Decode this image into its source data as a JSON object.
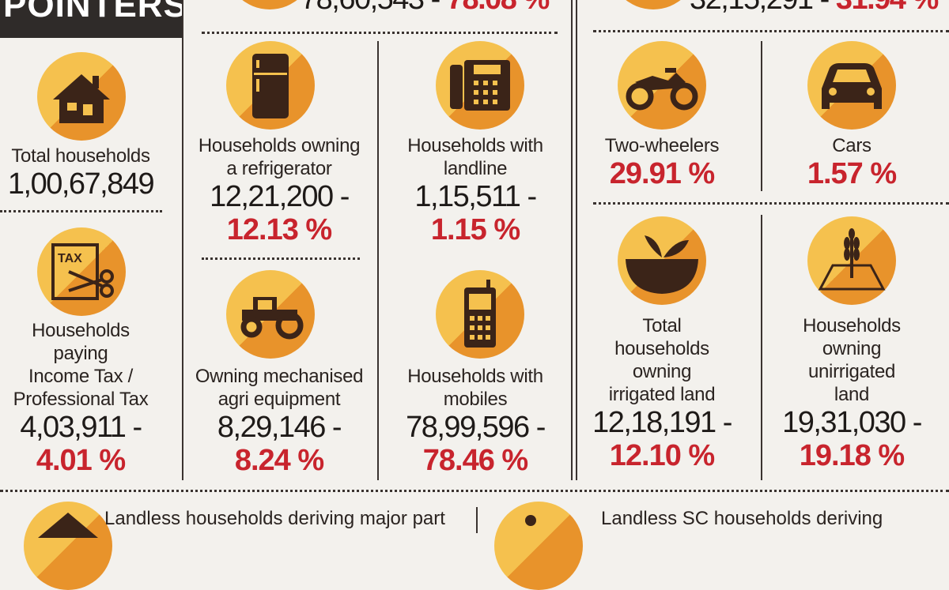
{
  "header": {
    "banner": "POINTERS",
    "top_left_value": "78,60,543 -",
    "top_left_pct": "78.08 %",
    "top_right_value": "32,15,291 -",
    "top_right_pct": "31.94 %"
  },
  "stats": [
    {
      "id": "total-households",
      "icon": "house-icon",
      "label_lines": [
        "Total households"
      ],
      "value": "1,00,67,849",
      "pct": ""
    },
    {
      "id": "refrigerator",
      "icon": "refrigerator-icon",
      "label_lines": [
        "Households owning",
        "a refrigerator"
      ],
      "value": "12,21,200 -",
      "pct": "12.13 %"
    },
    {
      "id": "landline",
      "icon": "landline-phone-icon",
      "label_lines": [
        "Households with",
        "landline"
      ],
      "value": "1,15,511 -",
      "pct": "1.15 %"
    },
    {
      "id": "two-wheelers",
      "icon": "motorcycle-icon",
      "label_lines": [
        "Two-wheelers"
      ],
      "value": "",
      "pct": "29.91 %"
    },
    {
      "id": "cars",
      "icon": "car-icon",
      "label_lines": [
        "Cars"
      ],
      "value": "",
      "pct": "1.57 %"
    },
    {
      "id": "income-tax",
      "icon": "tax-scissors-icon",
      "label_lines": [
        "Households",
        "paying",
        "Income Tax /",
        "Professional Tax"
      ],
      "value": "4,03,911 -",
      "pct": "4.01 %"
    },
    {
      "id": "agri-equipment",
      "icon": "tractor-icon",
      "label_lines": [
        "Owning mechanised",
        "agri equipment"
      ],
      "value": "8,29,146 -",
      "pct": "8.24 %"
    },
    {
      "id": "mobiles",
      "icon": "mobile-phone-icon",
      "label_lines": [
        "Households with",
        "mobiles"
      ],
      "value": "78,99,596 -",
      "pct": "78.46 %"
    },
    {
      "id": "irrigated-land",
      "icon": "plant-soil-icon",
      "label_lines": [
        "Total",
        "households",
        "owning",
        "irrigated land"
      ],
      "value": "12,18,191 -",
      "pct": "12.10 %"
    },
    {
      "id": "unirrigated-land",
      "icon": "wheat-field-icon",
      "label_lines": [
        "Households",
        "owning",
        "unirrigated",
        "land"
      ],
      "value": "19,31,030 -",
      "pct": "19.18 %"
    }
  ],
  "bottom": {
    "left_text": "Landless households deriving major part",
    "right_text": "Landless SC households deriving"
  },
  "colors": {
    "circle_light": "#f5c14e",
    "circle_dark": "#e8932b",
    "icon": "#3b2418",
    "pct": "#c8242d"
  }
}
